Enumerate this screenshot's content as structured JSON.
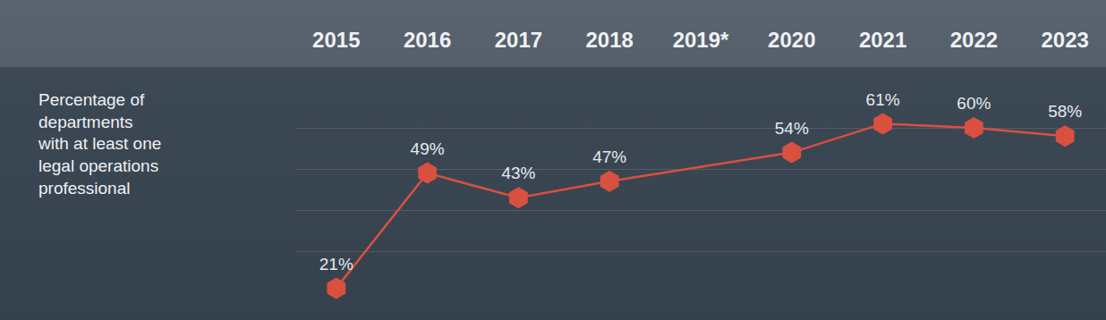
{
  "chart_data": {
    "type": "line",
    "ylabel": [
      "Percentage of",
      "departments",
      "with at least one",
      "legal operations",
      "professional"
    ],
    "categories": [
      "2015",
      "2016",
      "2017",
      "2018",
      "2019*",
      "2020",
      "2021",
      "2022",
      "2023"
    ],
    "values": [
      21,
      49,
      43,
      47,
      null,
      54,
      61,
      60,
      58
    ],
    "value_labels": [
      "21%",
      "49%",
      "43%",
      "47%",
      null,
      "54%",
      "61%",
      "60%",
      "58%"
    ],
    "data_labels": true,
    "color": "#d9503f",
    "marker": "hexagon",
    "ylim": [
      20,
      70
    ],
    "yticks": [
      20,
      30,
      40,
      50,
      60,
      70
    ],
    "grid": true,
    "tick_labels": "x"
  }
}
